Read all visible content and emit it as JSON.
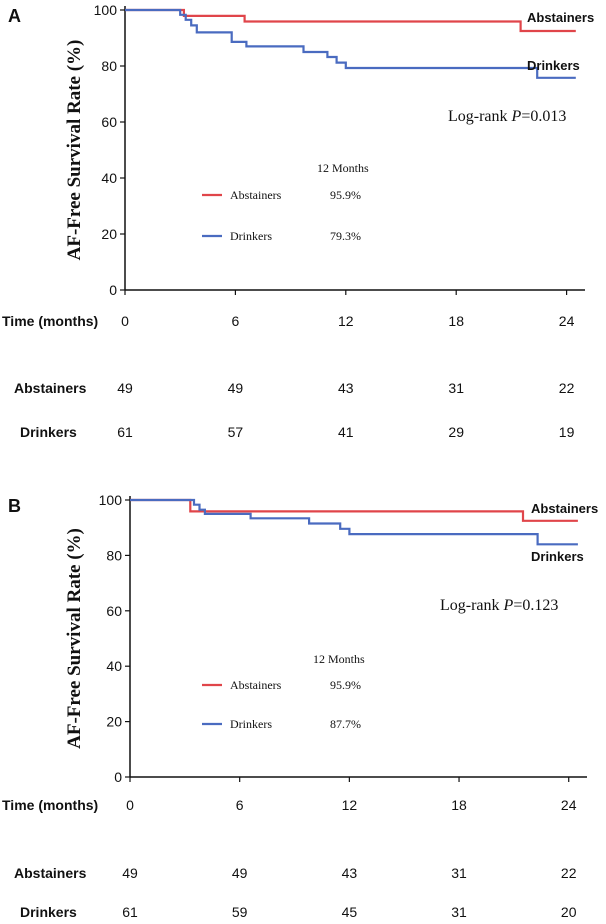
{
  "chart_data": [
    {
      "type": "line",
      "panel_label": "A",
      "ylabel": "AF-Free Survival Rate (%)",
      "xlabel": "Time (months)",
      "x_ticks": [
        "0",
        "6",
        "12",
        "18",
        "24"
      ],
      "y_ticks": [
        "0",
        "20",
        "40",
        "60",
        "80",
        "100"
      ],
      "xlim": [
        0,
        25
      ],
      "ylim": [
        0,
        100
      ],
      "annotation_prefix": "Log-rank ",
      "annotation_p": "P",
      "annotation_value": "=0.013",
      "legend_title": "12 Months",
      "series": [
        {
          "name": "Abstainers",
          "color": "#e0454a",
          "twelve_month": "95.9%",
          "risk": [
            "49",
            "49",
            "43",
            "31",
            "22"
          ],
          "x": [
            0,
            3.2,
            3.2,
            6.5,
            6.5,
            21.5,
            21.5,
            24.5
          ],
          "y": [
            100,
            100,
            97.9,
            97.9,
            95.9,
            95.9,
            92.5,
            92.5
          ]
        },
        {
          "name": "Drinkers",
          "color": "#4a6bc0",
          "twelve_month": "79.3%",
          "risk": [
            "61",
            "57",
            "41",
            "29",
            "19"
          ],
          "x": [
            0,
            3.0,
            3.0,
            3.3,
            3.3,
            3.6,
            3.6,
            3.9,
            3.9,
            4.2,
            4.2,
            5.8,
            5.8,
            6.6,
            6.6,
            9.7,
            9.7,
            11.0,
            11.0,
            11.5,
            11.5,
            12.0,
            12.0,
            22.4,
            22.4,
            24.5
          ],
          "y": [
            100,
            100,
            98.3,
            98.3,
            96.5,
            96.5,
            94.5,
            94.5,
            92.0,
            92.0,
            92.0,
            92.0,
            88.6,
            88.6,
            87.0,
            87.0,
            85.0,
            85.0,
            83.2,
            83.2,
            81.2,
            81.2,
            79.3,
            79.3,
            75.8,
            75.8
          ]
        }
      ]
    },
    {
      "type": "line",
      "panel_label": "B",
      "ylabel": "AF-Free Survival Rate (%)",
      "xlabel": "Time (months)",
      "x_ticks": [
        "0",
        "6",
        "12",
        "18",
        "24"
      ],
      "y_ticks": [
        "0",
        "20",
        "40",
        "60",
        "80",
        "100"
      ],
      "xlim": [
        0,
        25
      ],
      "ylim": [
        0,
        100
      ],
      "annotation_prefix": "Log-rank ",
      "annotation_p": "P",
      "annotation_value": "=0.123",
      "legend_title": "12 Months",
      "series": [
        {
          "name": "Abstainers",
          "color": "#e0454a",
          "twelve_month": "95.9%",
          "risk": [
            "49",
            "49",
            "43",
            "31",
            "22"
          ],
          "x": [
            0,
            3.3,
            3.3,
            21.5,
            21.5,
            24.5
          ],
          "y": [
            100,
            100,
            95.9,
            95.9,
            92.5,
            92.5
          ]
        },
        {
          "name": "Drinkers",
          "color": "#4a6bc0",
          "twelve_month": "87.7%",
          "risk": [
            "61",
            "59",
            "45",
            "31",
            "20"
          ],
          "x": [
            0,
            3.5,
            3.5,
            3.8,
            3.8,
            4.1,
            4.1,
            6.6,
            6.6,
            9.8,
            9.8,
            11.5,
            11.5,
            12.0,
            12.0,
            22.3,
            22.3,
            24.5
          ],
          "y": [
            100,
            100,
            98.3,
            98.3,
            96.5,
            96.5,
            95.0,
            95.0,
            93.4,
            93.4,
            91.5,
            91.5,
            89.6,
            89.6,
            87.7,
            87.7,
            84.0,
            84.0
          ]
        }
      ]
    }
  ]
}
